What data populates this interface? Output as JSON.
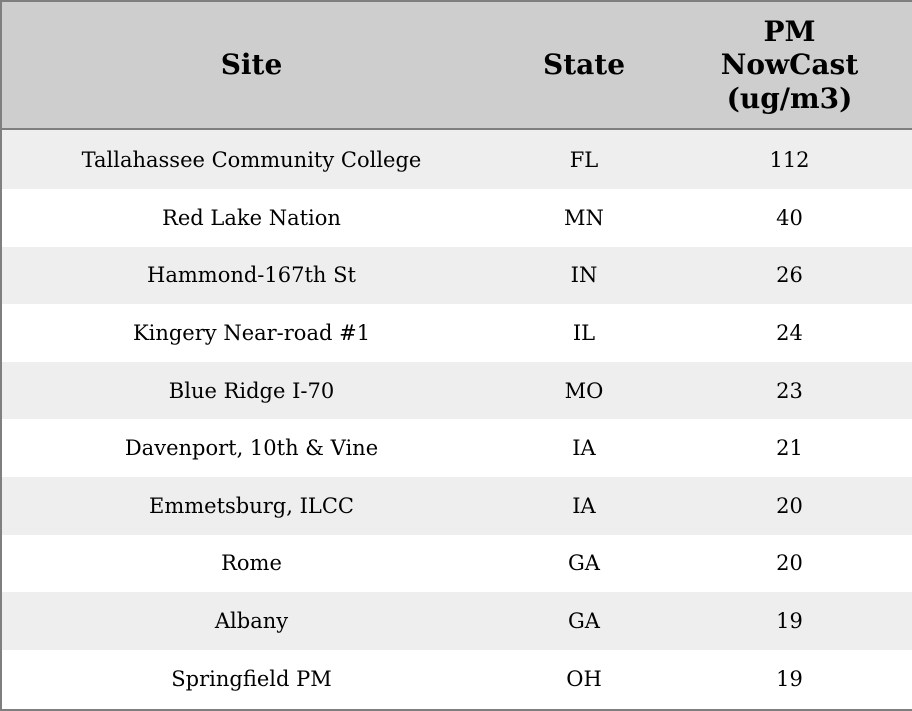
{
  "table": {
    "columns": [
      {
        "label": "Site"
      },
      {
        "label": "State"
      },
      {
        "label": "PM\nNowCast\n(ug/m3)"
      }
    ],
    "rows": [
      {
        "site": "Tallahassee Community College",
        "state": "FL",
        "pm_nowcast": "112"
      },
      {
        "site": "Red Lake Nation",
        "state": "MN",
        "pm_nowcast": "40"
      },
      {
        "site": "Hammond-167th St",
        "state": "IN",
        "pm_nowcast": "26"
      },
      {
        "site": "Kingery Near-road #1",
        "state": "IL",
        "pm_nowcast": "24"
      },
      {
        "site": "Blue Ridge I-70",
        "state": "MO",
        "pm_nowcast": "23"
      },
      {
        "site": "Davenport, 10th & Vine",
        "state": "IA",
        "pm_nowcast": "21"
      },
      {
        "site": "Emmetsburg, ILCC",
        "state": "IA",
        "pm_nowcast": "20"
      },
      {
        "site": "Rome",
        "state": "GA",
        "pm_nowcast": "20"
      },
      {
        "site": "Albany",
        "state": "GA",
        "pm_nowcast": "19"
      },
      {
        "site": "Springfield PM",
        "state": "OH",
        "pm_nowcast": "19"
      }
    ]
  },
  "colors": {
    "header_background": "#cecece",
    "stripe_row_background": "#eeeeee",
    "plain_row_background": "#ffffff",
    "border": "#7f7f7f",
    "text": "#000000"
  },
  "chart_data": {
    "type": "table",
    "columns": [
      "Site",
      "State",
      "PM NowCast (ug/m3)"
    ],
    "rows": [
      [
        "Tallahassee Community College",
        "FL",
        112
      ],
      [
        "Red Lake Nation",
        "MN",
        40
      ],
      [
        "Hammond-167th St",
        "IN",
        26
      ],
      [
        "Kingery Near-road #1",
        "IL",
        24
      ],
      [
        "Blue Ridge I-70",
        "MO",
        23
      ],
      [
        "Davenport, 10th & Vine",
        "IA",
        21
      ],
      [
        "Emmetsburg, ILCC",
        "IA",
        20
      ],
      [
        "Rome",
        "GA",
        20
      ],
      [
        "Albany",
        "GA",
        19
      ],
      [
        "Springfield PM",
        "OH",
        19
      ]
    ]
  }
}
